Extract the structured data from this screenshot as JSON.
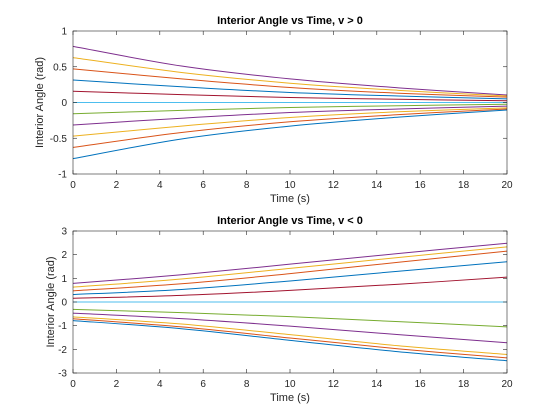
{
  "chart_data": [
    {
      "type": "line",
      "title": "Interior Angle vs Time, v > 0",
      "xlabel": "Time (s)",
      "ylabel": "Interior Angle (rad)",
      "xlim": [
        0,
        20
      ],
      "ylim": [
        -1,
        1
      ],
      "xticks": [
        0,
        2,
        4,
        6,
        8,
        10,
        12,
        14,
        16,
        18,
        20
      ],
      "yticks": [
        -1,
        -0.5,
        0,
        0.5,
        1
      ],
      "xtick_labels": [
        "0",
        "2",
        "4",
        "6",
        "8",
        "10",
        "12",
        "14",
        "16",
        "18",
        "20"
      ],
      "ytick_labels": [
        "-1",
        "-0.5",
        "0",
        "0.5",
        "1"
      ],
      "grid": false,
      "series": [
        {
          "color": "#7E2F8E",
          "x": [
            0,
            5,
            10,
            15,
            20
          ],
          "values": [
            0.785,
            0.51,
            0.33,
            0.205,
            0.105
          ]
        },
        {
          "color": "#EDB120",
          "x": [
            0,
            5,
            10,
            15,
            20
          ],
          "values": [
            0.628,
            0.42,
            0.27,
            0.17,
            0.09
          ]
        },
        {
          "color": "#D95319",
          "x": [
            0,
            5,
            10,
            15,
            20
          ],
          "values": [
            0.471,
            0.33,
            0.21,
            0.13,
            0.075
          ]
        },
        {
          "color": "#0072BD",
          "x": [
            0,
            5,
            10,
            15,
            20
          ],
          "values": [
            0.314,
            0.22,
            0.14,
            0.09,
            0.05
          ]
        },
        {
          "color": "#A2142F",
          "x": [
            0,
            5,
            10,
            15,
            20
          ],
          "values": [
            0.157,
            0.11,
            0.07,
            0.045,
            0.025
          ]
        },
        {
          "color": "#4DBEEE",
          "x": [
            0,
            5,
            10,
            15,
            20
          ],
          "values": [
            0,
            0,
            0,
            0,
            0
          ]
        },
        {
          "color": "#77AC30",
          "x": [
            0,
            5,
            10,
            15,
            20
          ],
          "values": [
            -0.157,
            -0.11,
            -0.07,
            -0.045,
            -0.025
          ]
        },
        {
          "color": "#7E2F8E",
          "x": [
            0,
            5,
            10,
            15,
            20
          ],
          "values": [
            -0.314,
            -0.22,
            -0.14,
            -0.09,
            -0.05
          ]
        },
        {
          "color": "#EDB120",
          "x": [
            0,
            5,
            10,
            15,
            20
          ],
          "values": [
            -0.471,
            -0.33,
            -0.21,
            -0.13,
            -0.075
          ]
        },
        {
          "color": "#D95319",
          "x": [
            0,
            5,
            10,
            15,
            20
          ],
          "values": [
            -0.628,
            -0.42,
            -0.27,
            -0.17,
            -0.09
          ]
        },
        {
          "color": "#0072BD",
          "x": [
            0,
            5,
            10,
            15,
            20
          ],
          "values": [
            -0.785,
            -0.51,
            -0.33,
            -0.205,
            -0.105
          ]
        }
      ]
    },
    {
      "type": "line",
      "title": "Interior Angle vs Time, v < 0",
      "xlabel": "Time (s)",
      "ylabel": "Interior Angle (rad)",
      "xlim": [
        0,
        20
      ],
      "ylim": [
        -3,
        3
      ],
      "xticks": [
        0,
        2,
        4,
        6,
        8,
        10,
        12,
        14,
        16,
        18,
        20
      ],
      "yticks": [
        -3,
        -2,
        -1,
        0,
        1,
        2,
        3
      ],
      "xtick_labels": [
        "0",
        "2",
        "4",
        "6",
        "8",
        "10",
        "12",
        "14",
        "16",
        "18",
        "20"
      ],
      "ytick_labels": [
        "-3",
        "-2",
        "-1",
        "0",
        "1",
        "2",
        "3"
      ],
      "grid": false,
      "series": [
        {
          "color": "#7E2F8E",
          "x": [
            0,
            5,
            10,
            15,
            20
          ],
          "values": [
            0.785,
            1.15,
            1.6,
            2.05,
            2.48
          ]
        },
        {
          "color": "#EDB120",
          "x": [
            0,
            5,
            10,
            15,
            20
          ],
          "values": [
            0.628,
            0.97,
            1.42,
            1.88,
            2.33
          ]
        },
        {
          "color": "#D95319",
          "x": [
            0,
            5,
            10,
            15,
            20
          ],
          "values": [
            0.471,
            0.77,
            1.2,
            1.68,
            2.15
          ]
        },
        {
          "color": "#0072BD",
          "x": [
            0,
            5,
            10,
            15,
            20
          ],
          "values": [
            0.314,
            0.53,
            0.89,
            1.3,
            1.7
          ]
        },
        {
          "color": "#A2142F",
          "x": [
            0,
            5,
            10,
            15,
            20
          ],
          "values": [
            0.157,
            0.28,
            0.49,
            0.75,
            1.05
          ]
        },
        {
          "color": "#4DBEEE",
          "x": [
            0,
            5,
            10,
            15,
            20
          ],
          "values": [
            0,
            0,
            0,
            0,
            0
          ]
        },
        {
          "color": "#77AC30",
          "x": [
            0,
            5,
            10,
            15,
            20
          ],
          "values": [
            -0.314,
            -0.45,
            -0.62,
            -0.83,
            -1.05
          ]
        },
        {
          "color": "#7E2F8E",
          "x": [
            0,
            5,
            10,
            15,
            20
          ],
          "values": [
            -0.471,
            -0.7,
            -1.02,
            -1.38,
            -1.72
          ]
        },
        {
          "color": "#EDB120",
          "x": [
            0,
            5,
            10,
            15,
            20
          ],
          "values": [
            -0.628,
            -0.93,
            -1.38,
            -1.85,
            -2.22
          ]
        },
        {
          "color": "#D95319",
          "x": [
            0,
            5,
            10,
            15,
            20
          ],
          "values": [
            -0.707,
            -1.05,
            -1.52,
            -1.98,
            -2.36
          ]
        },
        {
          "color": "#0072BD",
          "x": [
            0,
            5,
            10,
            15,
            20
          ],
          "values": [
            -0.785,
            -1.13,
            -1.62,
            -2.1,
            -2.48
          ]
        }
      ]
    }
  ]
}
